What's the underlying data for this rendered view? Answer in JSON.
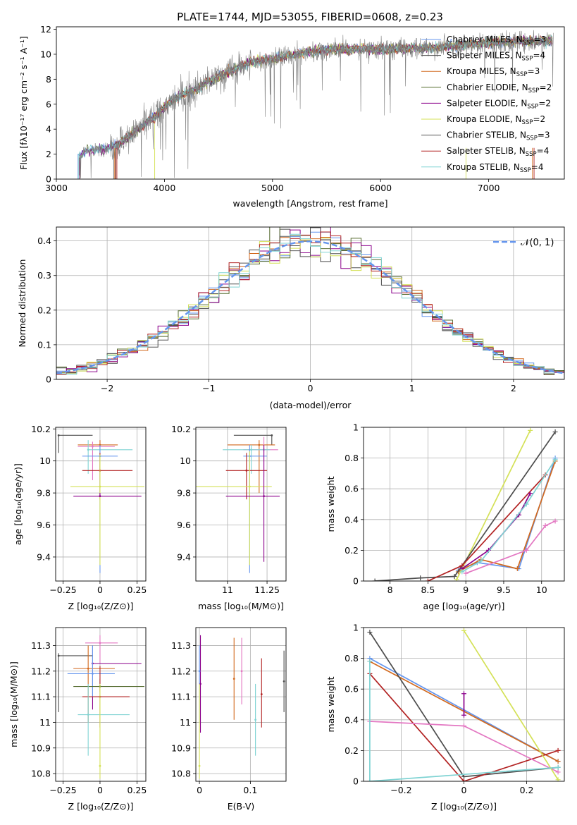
{
  "figure_title": "PLATE=1744, MJD=53055, FIBERID=0608, z=0.23",
  "model_colors": [
    "#6495ED",
    "#4D4D4D",
    "#D2691E",
    "#556B2F",
    "#8B008B",
    "#D4E157",
    "#555555",
    "#B22222",
    "#7FD3D3"
  ],
  "chart_data": [
    {
      "id": "spectrum",
      "type": "line",
      "title": "PLATE=1744, MJD=53055, FIBERID=0608, z=0.23",
      "xlabel": "wavelength [Angstrom, rest frame]",
      "ylabel": "Flux [fλ10⁻¹⁷ erg cm⁻² s⁻¹ A⁻¹]",
      "xlim": [
        3000,
        7700
      ],
      "ylim": [
        0,
        12.2
      ],
      "xticks": [
        3000,
        4000,
        5000,
        6000,
        7000
      ],
      "yticks": [
        0,
        2,
        4,
        6,
        8,
        10,
        12
      ],
      "grid": false,
      "legend_position": "upper right",
      "observed_color": "#808080",
      "spectrum_continuum": {
        "x": [
          3200,
          3300,
          3400,
          3500,
          3600,
          3700,
          3800,
          3900,
          4000,
          4100,
          4200,
          4300,
          4400,
          4500,
          4600,
          4700,
          4800,
          5000,
          5200,
          5400,
          5600,
          5800,
          6000,
          6200,
          6400,
          6600,
          6800,
          7000,
          7200,
          7400,
          7600
        ],
        "y": [
          1.8,
          2.3,
          2.4,
          2.5,
          3.0,
          3.6,
          4.3,
          4.9,
          5.8,
          6.4,
          6.9,
          7.2,
          7.8,
          8.2,
          8.6,
          9.0,
          9.4,
          9.6,
          10.0,
          10.3,
          10.4,
          10.4,
          10.4,
          10.5,
          10.5,
          10.6,
          10.8,
          10.9,
          11.0,
          11.1,
          11.1
        ]
      },
      "series": [
        {
          "name": "Chabrier MILES, N_SSP=3",
          "color": "#6495ED"
        },
        {
          "name": "Salpeter MILES, N_SSP=4",
          "color": "#4D4D4D"
        },
        {
          "name": "Kroupa MILES, N_SSP=3",
          "color": "#D2691E"
        },
        {
          "name": "Chabrier ELODIE, N_SSP=2",
          "color": "#556B2F"
        },
        {
          "name": "Salpeter ELODIE, N_SSP=2",
          "color": "#8B008B"
        },
        {
          "name": "Kroupa ELODIE, N_SSP=2",
          "color": "#D4E157"
        },
        {
          "name": "Chabrier STELIB, N_SSP=3",
          "color": "#555555"
        },
        {
          "name": "Salpeter STELIB, N_SSP=4",
          "color": "#B22222"
        },
        {
          "name": "Kroupa STELIB, N_SSP=4",
          "color": "#7FD3D3"
        }
      ]
    },
    {
      "id": "residuals",
      "type": "line",
      "xlabel": "(data-model)/error",
      "ylabel": "Normed distribution",
      "xlim": [
        -2.5,
        2.5
      ],
      "ylim": [
        0,
        0.44
      ],
      "xticks": [
        -2,
        -1,
        0,
        1,
        2
      ],
      "yticks": [
        0.0,
        0.1,
        0.2,
        0.3,
        0.4
      ],
      "grid": true,
      "legend_position": "upper right",
      "reference_label": "𝒩(0, 1)",
      "reference_color": "#6495ED",
      "bin_width": 0.1
    },
    {
      "id": "age_vs_Z",
      "type": "scatter",
      "xlabel": "Z [log₁₀(Z/Z⊙)]",
      "ylabel": "age  [log₁₀(age/yr)]",
      "xlim": [
        -0.3,
        0.31
      ],
      "ylim": [
        9.25,
        10.21
      ],
      "xticks": [
        -0.25,
        0.0,
        0.25
      ],
      "yticks": [
        9.4,
        9.6,
        9.8,
        10.0,
        10.2
      ],
      "grid": true,
      "points": [
        {
          "x": -0.28,
          "y": 10.16,
          "xlo": -0.28,
          "xhi": -0.05,
          "ylo": 10.05,
          "yhi": 10.16,
          "color": "#4D4D4D"
        },
        {
          "x": 0.0,
          "y": 10.1,
          "xlo": -0.15,
          "xhi": 0.12,
          "ylo": 9.95,
          "yhi": 10.13,
          "color": "#D2691E"
        },
        {
          "x": -0.05,
          "y": 10.09,
          "xlo": -0.15,
          "xhi": 0.1,
          "ylo": 9.88,
          "yhi": 10.12,
          "color": "#E377C2"
        },
        {
          "x": -0.08,
          "y": 10.07,
          "xlo": -0.08,
          "xhi": 0.22,
          "ylo": 9.92,
          "yhi": 10.13,
          "color": "#7FD3D3"
        },
        {
          "x": 0.0,
          "y": 10.03,
          "xlo": -0.12,
          "xhi": 0.12,
          "ylo": 9.3,
          "yhi": 10.1,
          "color": "#6495ED"
        },
        {
          "x": 0.0,
          "y": 9.94,
          "xlo": -0.12,
          "xhi": 0.22,
          "ylo": 9.76,
          "yhi": 10.05,
          "color": "#B22222"
        },
        {
          "x": 0.0,
          "y": 9.84,
          "xlo": -0.2,
          "xhi": 0.3,
          "ylo": 9.35,
          "yhi": 10.04,
          "color": "#D4E157"
        },
        {
          "x": 0.0,
          "y": 9.78,
          "xlo": -0.18,
          "xhi": 0.28,
          "ylo": 9.8,
          "yhi": 9.78,
          "color": "#8B008B"
        }
      ]
    },
    {
      "id": "age_vs_mass",
      "type": "scatter",
      "xlabel": "mass [log₁₀(M/M⊙)]",
      "ylabel": "",
      "xlim": [
        10.8,
        11.37
      ],
      "ylim": [
        9.25,
        10.21
      ],
      "xticks": [
        11.0,
        11.25
      ],
      "yticks": [
        9.4,
        9.6,
        9.8,
        10.0,
        10.2
      ],
      "grid": true,
      "points": [
        {
          "x": 11.28,
          "y": 10.16,
          "xlo": 11.04,
          "xhi": 11.28,
          "ylo": 10.1,
          "yhi": 10.16,
          "color": "#4D4D4D"
        },
        {
          "x": 11.2,
          "y": 10.1,
          "xlo": 11.0,
          "xhi": 11.3,
          "ylo": 9.8,
          "yhi": 10.13,
          "color": "#D2691E"
        },
        {
          "x": 11.23,
          "y": 10.07,
          "xlo": 11.1,
          "xhi": 11.32,
          "ylo": 9.9,
          "yhi": 10.15,
          "color": "#E377C2"
        },
        {
          "x": 11.15,
          "y": 10.07,
          "xlo": 10.97,
          "xhi": 11.27,
          "ylo": 9.92,
          "yhi": 10.1,
          "color": "#7FD3D3"
        },
        {
          "x": 11.14,
          "y": 10.03,
          "xlo": 11.1,
          "xhi": 11.25,
          "ylo": 9.3,
          "yhi": 10.1,
          "color": "#6495ED"
        },
        {
          "x": 11.12,
          "y": 9.94,
          "xlo": 10.99,
          "xhi": 11.25,
          "ylo": 9.76,
          "yhi": 10.05,
          "color": "#B22222"
        },
        {
          "x": 11.14,
          "y": 9.84,
          "xlo": 10.8,
          "xhi": 11.28,
          "ylo": 9.35,
          "yhi": 10.06,
          "color": "#D4E157"
        },
        {
          "x": 11.23,
          "y": 9.78,
          "xlo": 10.99,
          "xhi": 11.33,
          "ylo": 9.37,
          "yhi": 10.1,
          "color": "#8B008B"
        }
      ]
    },
    {
      "id": "weight_vs_age",
      "type": "line",
      "xlabel": "age  [log₁₀(age/yr)]",
      "ylabel": "mass weight",
      "xlim": [
        7.65,
        10.3
      ],
      "ylim": [
        0.0,
        1.0
      ],
      "xticks": [
        8.0,
        8.5,
        9.0,
        9.5,
        10.0
      ],
      "yticks": [
        0.0,
        0.2,
        0.4,
        0.6,
        0.8,
        1.0
      ],
      "grid": true,
      "series": [
        {
          "color": "#6495ED",
          "x": [
            8.9,
            9.15,
            9.7,
            10.18
          ],
          "y": [
            0.07,
            0.12,
            0.08,
            0.8
          ]
        },
        {
          "color": "#D2691E",
          "x": [
            8.9,
            9.2,
            9.68,
            10.18
          ],
          "y": [
            0.06,
            0.14,
            0.08,
            0.78
          ]
        },
        {
          "color": "#D4E157",
          "x": [
            8.88,
            9.85
          ],
          "y": [
            0.01,
            0.98
          ]
        },
        {
          "color": "#4D4D4D",
          "x": [
            7.8,
            8.4,
            8.85,
            10.18
          ],
          "y": [
            0.0,
            0.02,
            0.03,
            0.97
          ]
        },
        {
          "color": "#B22222",
          "x": [
            8.5,
            8.95,
            10.05
          ],
          "y": [
            0.0,
            0.1,
            0.69
          ]
        },
        {
          "color": "#8B008B",
          "x": [
            8.95,
            9.3,
            9.7,
            9.85
          ],
          "y": [
            0.08,
            0.2,
            0.43,
            0.57
          ]
        },
        {
          "color": "#E377C2",
          "x": [
            9.0,
            9.8,
            10.05,
            10.18
          ],
          "y": [
            0.05,
            0.2,
            0.36,
            0.39
          ]
        },
        {
          "color": "#7FD3D3",
          "x": [
            8.95,
            9.2,
            9.8,
            10.18
          ],
          "y": [
            0.06,
            0.13,
            0.5,
            0.79
          ]
        }
      ]
    },
    {
      "id": "mass_vs_Z",
      "type": "scatter",
      "xlabel": "Z [log₁₀(Z/Z⊙)]",
      "ylabel": "mass [log₁₀(M/M⊙)]",
      "xlim": [
        -0.3,
        0.31
      ],
      "ylim": [
        10.77,
        11.37
      ],
      "xticks": [
        -0.25,
        0.0,
        0.25
      ],
      "yticks": [
        10.8,
        10.9,
        11.0,
        11.1,
        11.2,
        11.3
      ],
      "grid": true,
      "points": [
        {
          "x": 0.0,
          "y": 11.31,
          "xlo": -0.1,
          "xhi": 0.12,
          "ylo": 11.23,
          "yhi": 11.34,
          "color": "#E377C2"
        },
        {
          "x": -0.28,
          "y": 11.26,
          "xlo": -0.28,
          "xhi": -0.05,
          "ylo": 11.04,
          "yhi": 11.27,
          "color": "#4D4D4D"
        },
        {
          "x": -0.05,
          "y": 11.23,
          "xlo": -0.05,
          "xhi": 0.28,
          "ylo": 11.05,
          "yhi": 11.3,
          "color": "#8B008B"
        },
        {
          "x": -0.08,
          "y": 11.21,
          "xlo": -0.18,
          "xhi": 0.1,
          "ylo": 11.0,
          "yhi": 11.3,
          "color": "#D2691E"
        },
        {
          "x": -0.05,
          "y": 11.19,
          "xlo": -0.22,
          "xhi": 0.1,
          "ylo": 11.1,
          "yhi": 11.3,
          "color": "#6495ED"
        },
        {
          "x": 0.0,
          "y": 11.14,
          "xlo": -0.18,
          "xhi": 0.3,
          "ylo": 11.12,
          "yhi": 11.17,
          "color": "#556B2F"
        },
        {
          "x": 0.0,
          "y": 11.1,
          "xlo": -0.12,
          "xhi": 0.2,
          "ylo": 10.98,
          "yhi": 11.22,
          "color": "#B22222"
        },
        {
          "x": -0.08,
          "y": 11.03,
          "xlo": -0.15,
          "xhi": 0.2,
          "ylo": 10.87,
          "yhi": 11.15,
          "color": "#7FD3D3"
        },
        {
          "x": 0.0,
          "y": 10.83,
          "xlo": 0.0,
          "xhi": 0.0,
          "ylo": 10.78,
          "yhi": 11.15,
          "color": "#D4E157"
        }
      ]
    },
    {
      "id": "mass_vs_ebv",
      "type": "scatter",
      "xlabel": "E(B-V)",
      "ylabel": "",
      "xlim": [
        -0.007,
        0.17
      ],
      "ylim": [
        10.77,
        11.37
      ],
      "xticks": [
        0.0,
        0.1
      ],
      "yticks": [
        10.8,
        10.9,
        11.0,
        11.1,
        11.2,
        11.3
      ],
      "grid": true,
      "points": [
        {
          "x": 0.002,
          "y": 11.15,
          "ylo": 10.96,
          "yhi": 11.34,
          "color": "#8B008B"
        },
        {
          "x": 0.0,
          "y": 11.2,
          "ylo": 11.0,
          "yhi": 11.3,
          "color": "#6495ED"
        },
        {
          "x": 0.0,
          "y": 10.83,
          "ylo": 10.78,
          "yhi": 11.15,
          "color": "#D4E157"
        },
        {
          "x": 0.068,
          "y": 11.17,
          "ylo": 11.01,
          "yhi": 11.33,
          "color": "#D2691E"
        },
        {
          "x": 0.083,
          "y": 11.2,
          "ylo": 11.07,
          "yhi": 11.33,
          "color": "#E377C2"
        },
        {
          "x": 0.11,
          "y": 11.01,
          "ylo": 10.87,
          "yhi": 11.15,
          "color": "#7FD3D3"
        },
        {
          "x": 0.122,
          "y": 11.11,
          "ylo": 10.98,
          "yhi": 11.25,
          "color": "#B22222"
        },
        {
          "x": 0.166,
          "y": 11.16,
          "ylo": 11.04,
          "yhi": 11.28,
          "color": "#4D4D4D"
        }
      ]
    },
    {
      "id": "weight_vs_Z",
      "type": "line",
      "xlabel": "Z [log₁₀(Z/Z⊙)]",
      "ylabel": "mass weight",
      "xlim": [
        -0.32,
        0.32
      ],
      "ylim": [
        0.0,
        1.0
      ],
      "xticks": [
        -0.2,
        0.0,
        0.2
      ],
      "yticks": [
        0.0,
        0.2,
        0.4,
        0.6,
        0.8,
        1.0
      ],
      "grid": true,
      "series": [
        {
          "color": "#6495ED",
          "x": [
            -0.3,
            0.3
          ],
          "y": [
            0.8,
            0.13
          ]
        },
        {
          "color": "#D2691E",
          "x": [
            -0.3,
            0.3
          ],
          "y": [
            0.78,
            0.13
          ]
        },
        {
          "color": "#4D4D4D",
          "x": [
            -0.3,
            0.0,
            0.3
          ],
          "y": [
            0.97,
            0.03,
            0.09
          ]
        },
        {
          "color": "#B22222",
          "x": [
            -0.3,
            0.0,
            0.3
          ],
          "y": [
            0.7,
            0.0,
            0.2
          ]
        },
        {
          "color": "#8B008B",
          "x": [
            0.0,
            0.0
          ],
          "y": [
            0.43,
            0.57
          ]
        },
        {
          "color": "#E377C2",
          "x": [
            -0.3,
            0.0,
            0.3
          ],
          "y": [
            0.39,
            0.36,
            0.06
          ]
        },
        {
          "color": "#D4E157",
          "x": [
            0.0,
            0.3
          ],
          "y": [
            0.98,
            0.01
          ]
        },
        {
          "color": "#7FD3D3",
          "x": [
            -0.3,
            -0.3,
            0.3
          ],
          "y": [
            0.78,
            0.0,
            0.09
          ]
        }
      ]
    }
  ]
}
